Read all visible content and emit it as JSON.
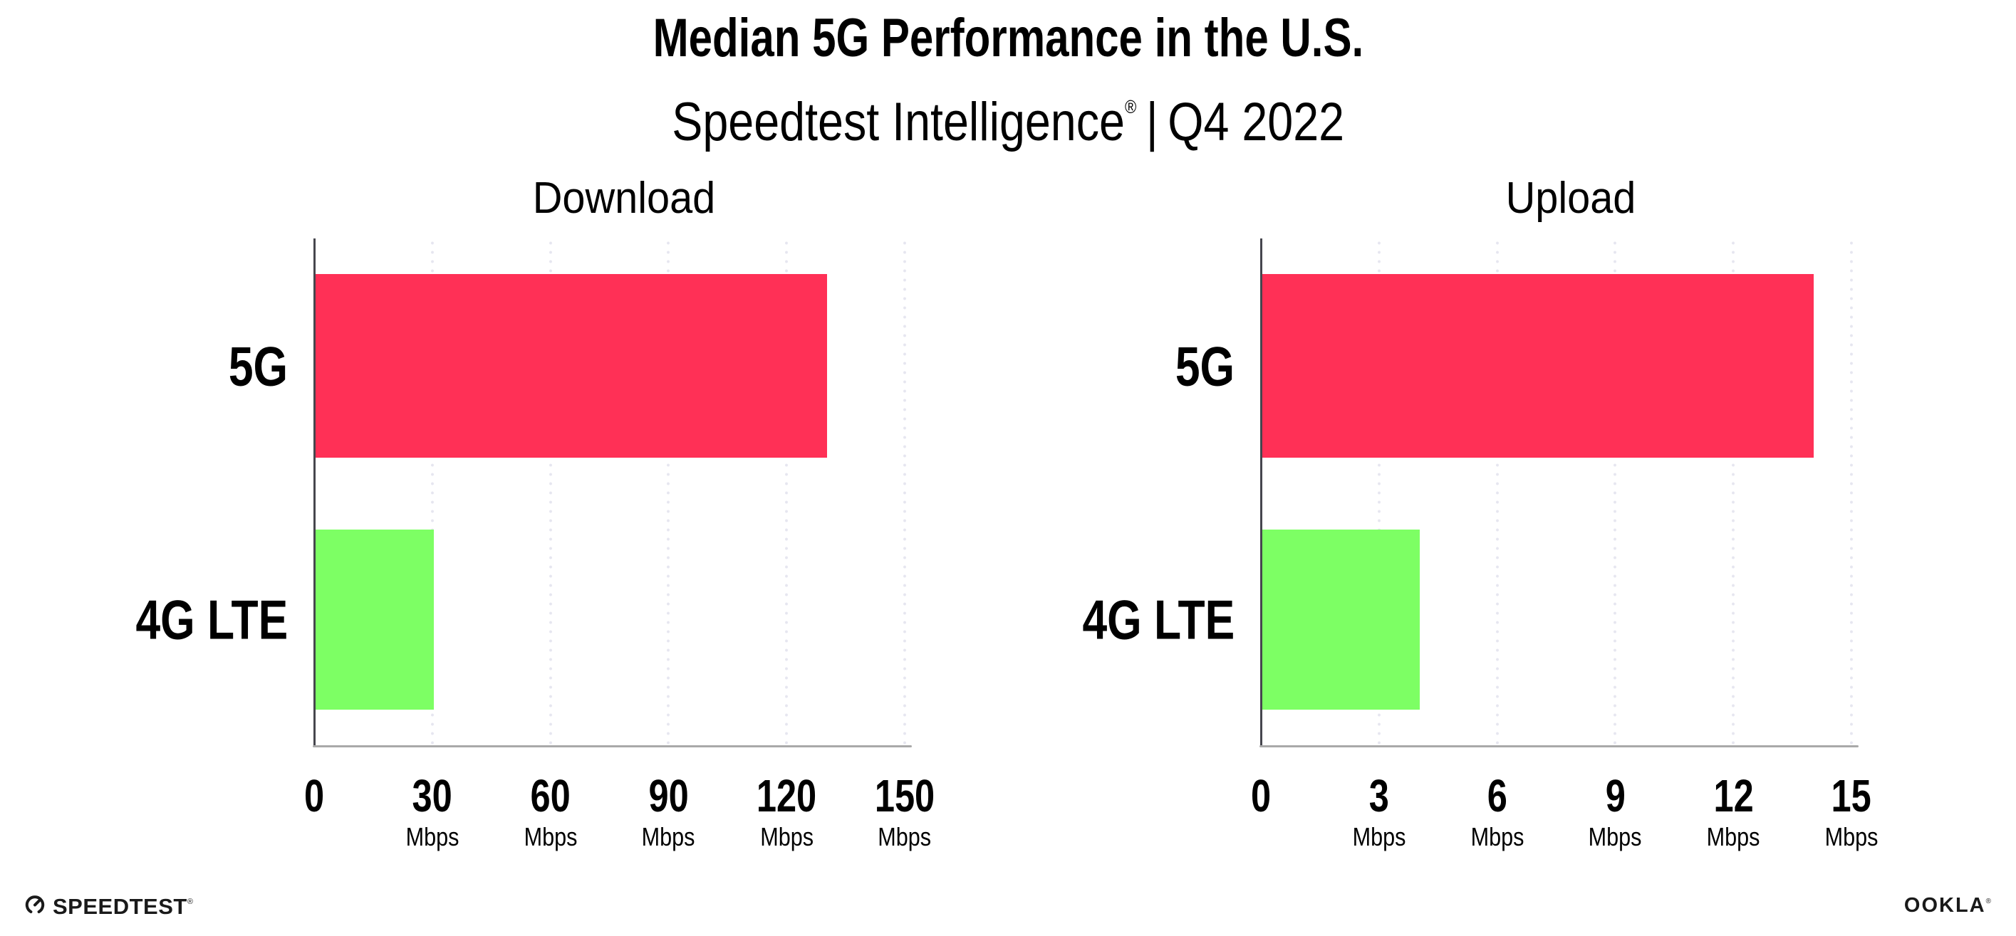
{
  "header": {
    "title": "Median 5G Performance in the U.S.",
    "subtitle_brand": "Speedtest Intelligence",
    "registered_mark": "®",
    "separator": "|",
    "subtitle_period": "Q4 2022"
  },
  "colors": {
    "bar_5g": "#ff3056",
    "bar_4g": "#7dff64",
    "gridline": "#e6e6f0",
    "axis_left": "#46464e",
    "axis_bottom": "#a9a9a9"
  },
  "chart_data": [
    {
      "type": "bar",
      "orientation": "horizontal",
      "title": "Download",
      "categories": [
        "5G",
        "4G LTE"
      ],
      "values": [
        130,
        30
      ],
      "unit": "Mbps",
      "xlim": [
        0,
        150
      ],
      "tick_labels": [
        "0",
        "30",
        "60",
        "90",
        "120",
        "150"
      ],
      "tick_unit": "Mbps",
      "bar_colors": [
        "#ff3056",
        "#7dff64"
      ],
      "grid": "vertical-dotted",
      "legend": "none"
    },
    {
      "type": "bar",
      "orientation": "horizontal",
      "title": "Upload",
      "categories": [
        "5G",
        "4G LTE"
      ],
      "values": [
        14,
        4
      ],
      "unit": "Mbps",
      "xlim": [
        0,
        15
      ],
      "tick_labels": [
        "0",
        "3",
        "6",
        "9",
        "12",
        "15"
      ],
      "tick_unit": "Mbps",
      "bar_colors": [
        "#ff3056",
        "#7dff64"
      ],
      "grid": "vertical-dotted",
      "legend": "none"
    }
  ],
  "footer": {
    "speedtest_logo": "SPEEDTEST",
    "speedtest_reg": "®",
    "ookla_logo": "OOKLA",
    "ookla_reg": "®"
  }
}
